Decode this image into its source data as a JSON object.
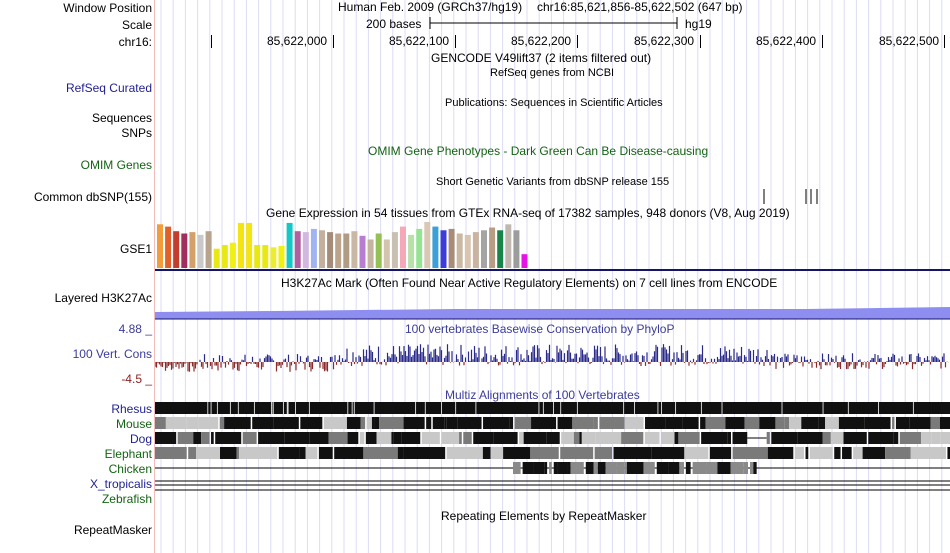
{
  "labels": {
    "window_position": "Window Position",
    "scale": "Scale",
    "chr": "chr16:",
    "refseq": "RefSeq Curated",
    "sequences": "Sequences",
    "snps": "SNPs",
    "omim": "OMIM Genes",
    "dbsnp": "Common dbSNP(155)",
    "gse1": "GSE1",
    "h3k27ac": "Layered H3K27Ac",
    "cons_max": "4.88 _",
    "cons_label": "100 Vert. Cons",
    "cons_min": "-4.5 _",
    "repeatmasker": "RepeatMasker"
  },
  "header": {
    "assembly": "Human Feb. 2009 (GRCh37/hg19)",
    "position": "chr16:85,621,856-85,622,502 (647 bp)",
    "scale_text": "200 bases",
    "scale_db": "hg19",
    "ticks": [
      "85,622,000",
      "85,622,100",
      "85,622,200",
      "85,622,300",
      "85,622,400",
      "85,622,500"
    ]
  },
  "tracks": {
    "gencode_title": "GENCODE V49lift37 (2 items filtered out)",
    "refseq_title": "RefSeq genes from NCBI",
    "pubs_title": "Publications: Sequences in Scientific Articles",
    "omim_title": "OMIM Gene Phenotypes - Dark Green Can Be Disease-causing",
    "dbsnp_title": "Short Genetic Variants from dbSNP release 155",
    "gtex_title": "Gene Expression in 54 tissues from GTEx RNA-seq of 17382 samples, 948 donors (V8, Aug 2019)",
    "h3k27ac_title": "H3K27Ac Mark (Often Found Near Active Regulatory Elements) on 7 cell lines from ENCODE",
    "cons_title": "100 vertebrates Basewise Conservation by PhyloP",
    "multiz_title": "Multiz Alignments of 100 Vertebrates",
    "repeat_title": "Repeating Elements by RepeatMasker"
  },
  "species": [
    {
      "name": "Rhesus",
      "color": "#1f1f8f"
    },
    {
      "name": "Mouse",
      "color": "#146314"
    },
    {
      "name": "Dog",
      "color": "#1f1f8f"
    },
    {
      "name": "Elephant",
      "color": "#146314"
    },
    {
      "name": "Chicken",
      "color": "#146314"
    },
    {
      "name": "X_tropicalis",
      "color": "#1f1f8f"
    },
    {
      "name": "Zebrafish",
      "color": "#146314"
    }
  ],
  "gtex_values": [
    0.95,
    0.9,
    0.8,
    0.75,
    0.78,
    0.72,
    0.8,
    0.42,
    0.5,
    0.55,
    0.98,
    0.98,
    0.5,
    0.5,
    0.45,
    0.48,
    0.98,
    0.8,
    0.78,
    0.85,
    0.82,
    0.78,
    0.75,
    0.75,
    0.8,
    0.7,
    0.62,
    0.75,
    0.62,
    0.78,
    0.9,
    0.72,
    0.85,
    1.0,
    0.9,
    0.82,
    0.85,
    0.75,
    0.72,
    0.78,
    0.82,
    0.88,
    0.82,
    0.95,
    0.82,
    0.3
  ]
}
